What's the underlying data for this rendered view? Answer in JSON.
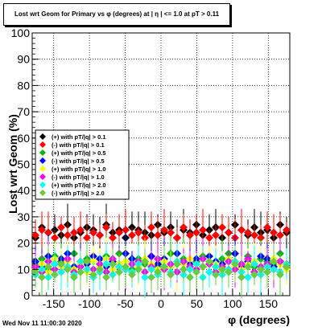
{
  "title": "Lost wrt Geom for Primary vs φ (degrees) at | η | <= 1.0 at pT > 0.11",
  "footer_stamp": "Wed Nov 11 11:00:30 2020",
  "chart_data": {
    "type": "scatter",
    "xlabel": "φ (degrees)",
    "ylabel": "Lost wrt Geom (%)",
    "xlim": [
      -180,
      180
    ],
    "ylim": [
      0,
      100
    ],
    "xticks": [
      -150,
      -100,
      -50,
      0,
      50,
      100,
      150
    ],
    "yticks": [
      0,
      10,
      20,
      30,
      40,
      50,
      60,
      70,
      80,
      90,
      100
    ],
    "grid": true,
    "legend_position": "left-middle",
    "bin_width_deg": 9,
    "series": [
      {
        "name": "(+) with pT/|q| > 0.1",
        "color": "#000000",
        "values": [
          22,
          26,
          24,
          25,
          23,
          27,
          22,
          24,
          26,
          25,
          23,
          27,
          24,
          25,
          22,
          26,
          25,
          24,
          23,
          27,
          24,
          26,
          22,
          25,
          24,
          27,
          23,
          25,
          26,
          22,
          24,
          27,
          25,
          23,
          26,
          24,
          25,
          22,
          27,
          24
        ]
      },
      {
        "name": "(-) with pT/|q| > 0.1",
        "color": "#ff0000",
        "values": [
          23,
          25,
          24,
          22,
          26,
          23,
          24,
          25,
          22,
          24,
          23,
          26,
          22,
          24,
          25,
          23,
          24,
          22,
          26,
          23,
          25,
          24,
          22,
          26,
          23,
          24,
          25,
          22,
          23,
          26,
          24,
          22,
          25,
          24,
          23,
          22,
          26,
          24,
          23,
          25
        ]
      },
      {
        "name": "(+) with pT/|q| > 0.5",
        "color": "#00bb00",
        "values": [
          12,
          14,
          10,
          15,
          13,
          11,
          16,
          12,
          14,
          13,
          11,
          15,
          12,
          16,
          13,
          10,
          14,
          12,
          15,
          11,
          13,
          16,
          12,
          14,
          10,
          13,
          15,
          12,
          11,
          14,
          16,
          13,
          12,
          15,
          11,
          14,
          13,
          12,
          16,
          11
        ]
      },
      {
        "name": "(-) with pT/|q| > 0.5",
        "color": "#0000ff",
        "values": [
          13,
          11,
          15,
          12,
          14,
          16,
          11,
          13,
          12,
          15,
          14,
          11,
          13,
          12,
          16,
          14,
          11,
          13,
          15,
          12,
          14,
          11,
          16,
          13,
          12,
          14,
          11,
          15,
          13,
          12,
          14,
          16,
          11,
          13,
          12,
          15,
          14,
          11,
          13,
          12
        ]
      },
      {
        "name": "(+) with pT/|q| > 1.0",
        "color": "#ffff00",
        "values": [
          10,
          12,
          9,
          14,
          11,
          13,
          10,
          12,
          9,
          13,
          11,
          14,
          10,
          12,
          13,
          9,
          11,
          14,
          12,
          10,
          13,
          11,
          9,
          12,
          14,
          10,
          11,
          13,
          12,
          9,
          14,
          11,
          10,
          12,
          13,
          11,
          9,
          14,
          12,
          10
        ]
      },
      {
        "name": "(-) with pT/|q| > 1.0",
        "color": "#ff00ff",
        "values": [
          11,
          9,
          13,
          10,
          12,
          14,
          9,
          11,
          13,
          10,
          12,
          9,
          14,
          11,
          10,
          12,
          13,
          9,
          11,
          14,
          10,
          12,
          9,
          13,
          11,
          10,
          14,
          12,
          9,
          11,
          13,
          10,
          12,
          14,
          9,
          11,
          12,
          10,
          13,
          11
        ]
      },
      {
        "name": "(+) with pT/|q| > 2.0",
        "color": "#00ffff",
        "values": [
          8,
          10,
          7,
          12,
          9,
          11,
          8,
          13,
          10,
          7,
          9,
          12,
          8,
          11,
          10,
          9,
          12,
          7,
          10,
          8,
          11,
          9,
          13,
          8,
          10,
          12,
          7,
          9,
          11,
          8,
          10,
          13,
          9,
          7,
          12,
          8,
          11,
          10,
          9,
          12
        ]
      },
      {
        "name": "(-) with pT/|q| > 2.0",
        "color": "#66cc44",
        "values": [
          9,
          7,
          11,
          8,
          12,
          10,
          7,
          9,
          13,
          8,
          10,
          7,
          12,
          9,
          11,
          8,
          10,
          13,
          7,
          9,
          11,
          8,
          12,
          10,
          7,
          9,
          11,
          13,
          8,
          10,
          9,
          12,
          7,
          11,
          8,
          10,
          9,
          13,
          8,
          11
        ]
      }
    ]
  }
}
